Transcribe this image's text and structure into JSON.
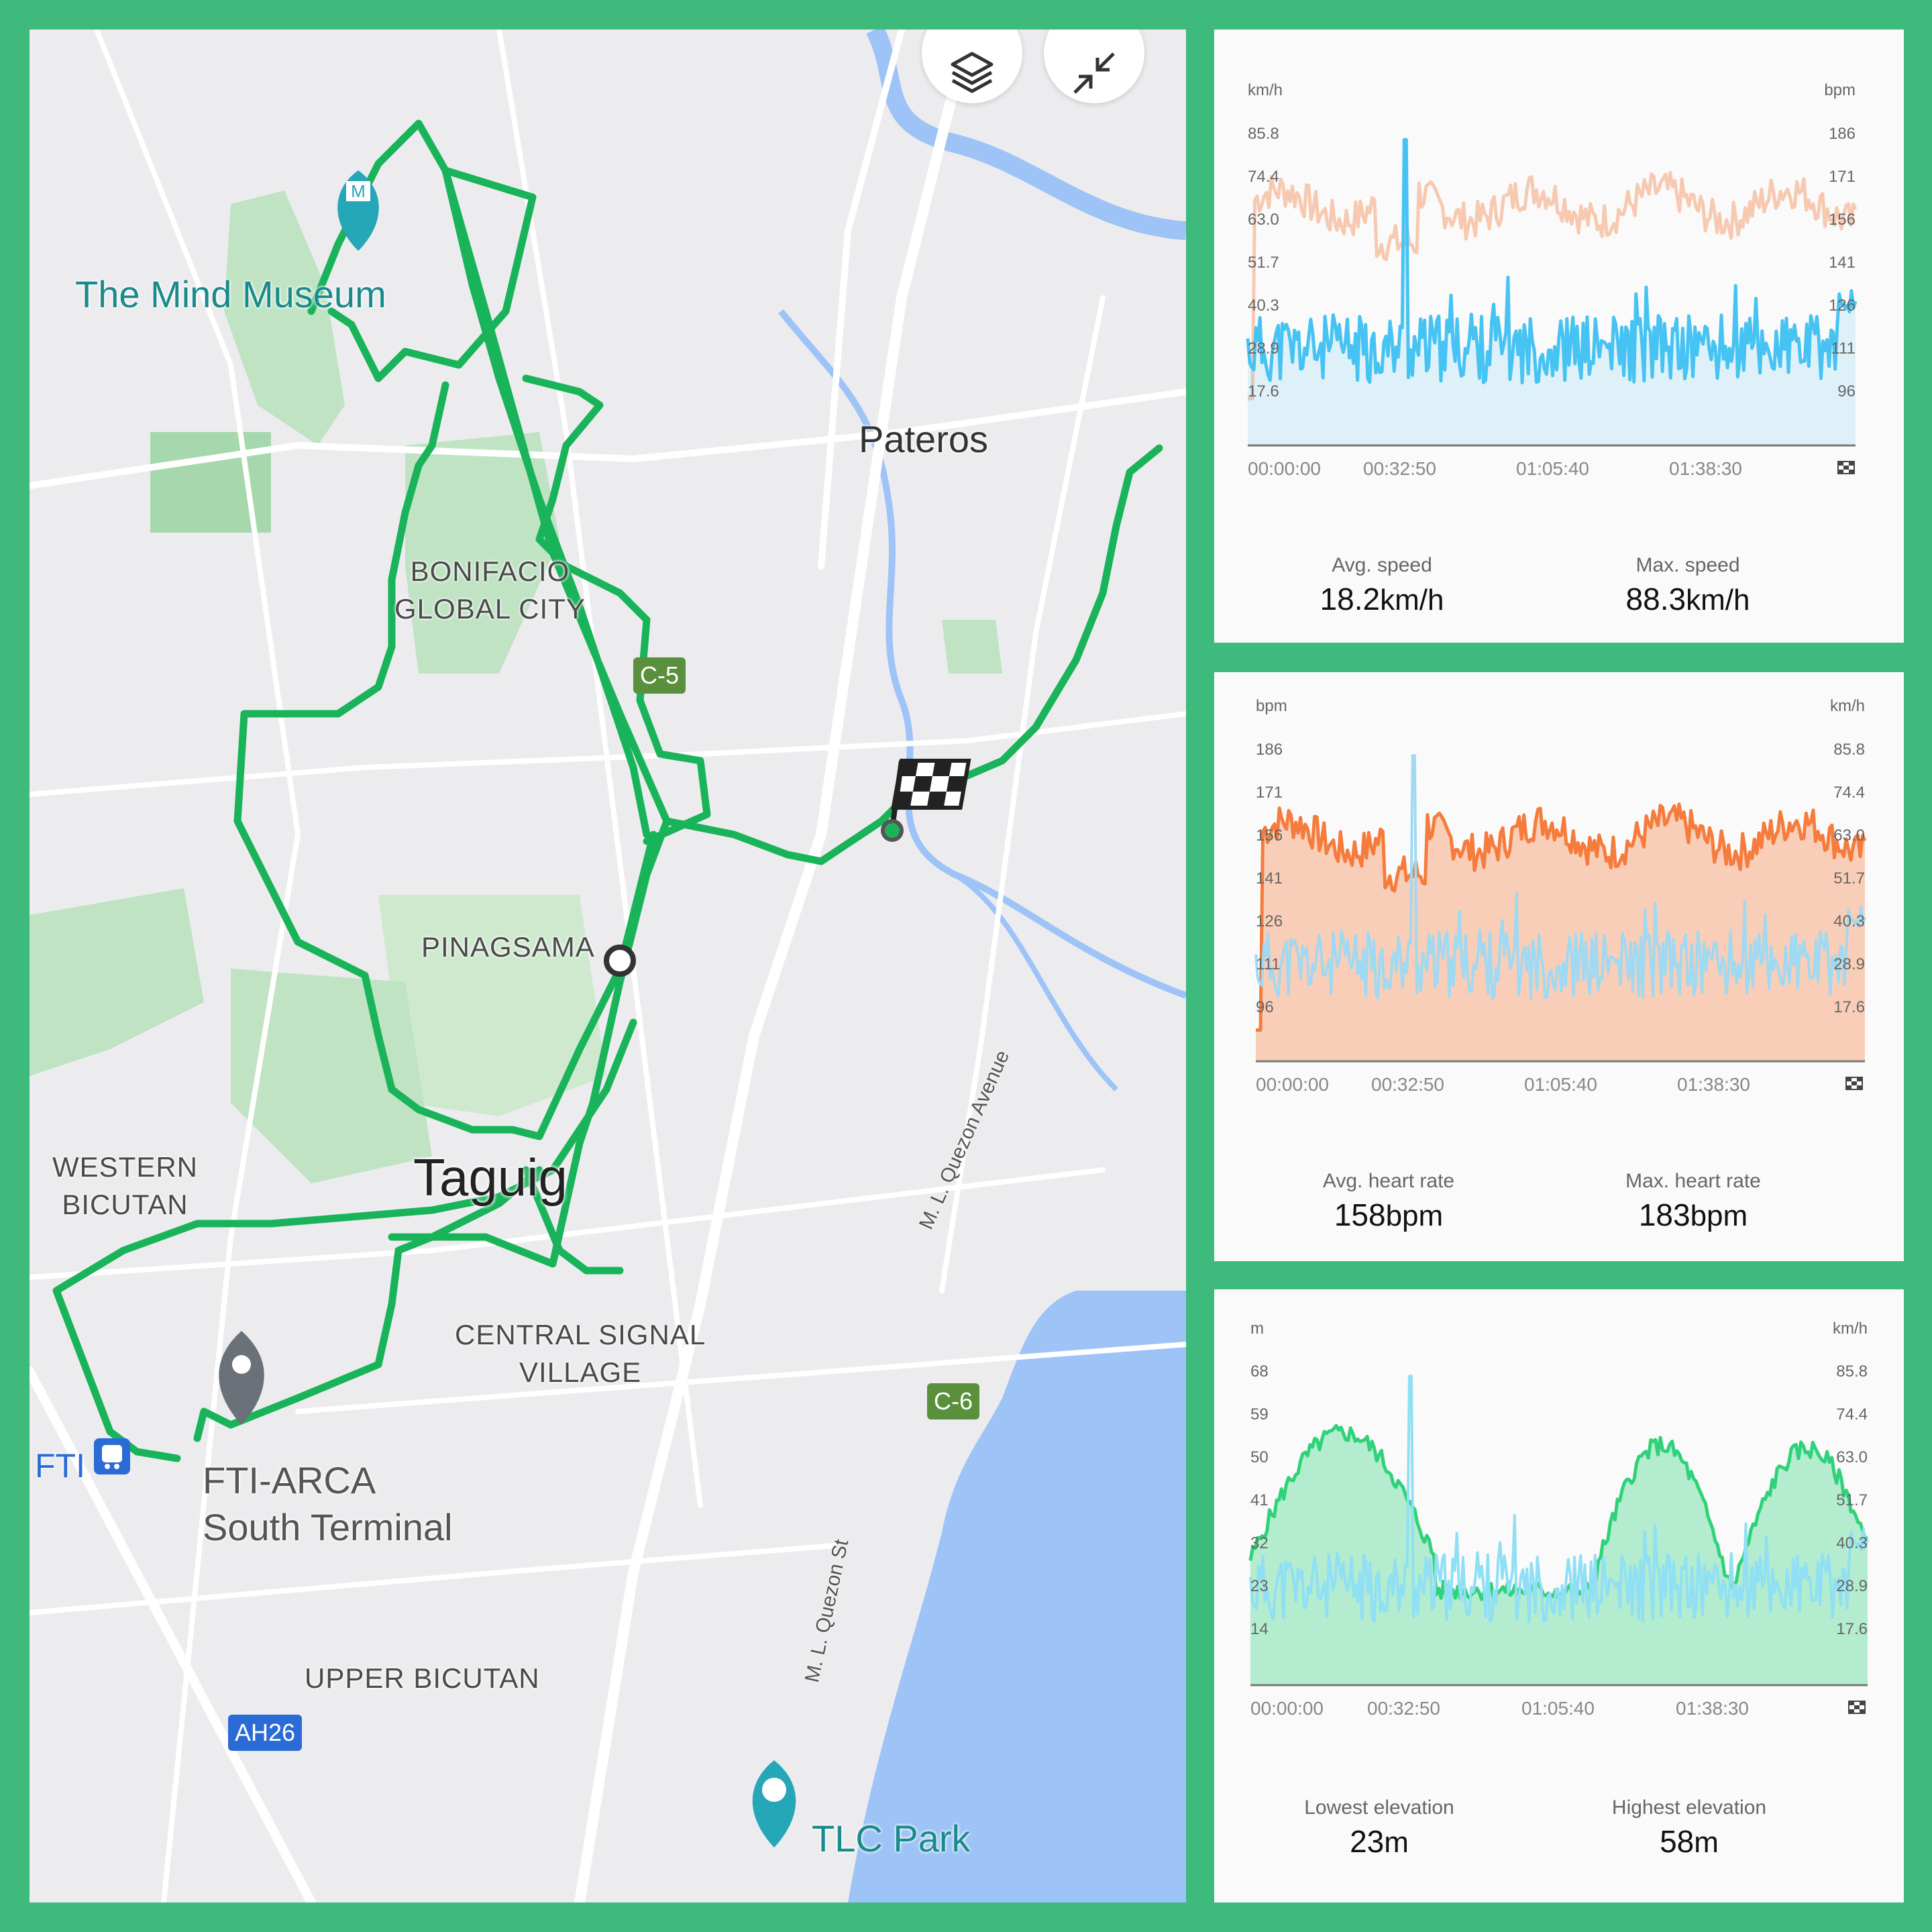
{
  "map": {
    "controls": {
      "layers_icon": "layers-icon",
      "collapse_icon": "collapse-icon"
    },
    "labels": {
      "mind_museum": "The Mind Museum",
      "pateros": "Pateros",
      "bgc_line1": "BONIFACIO",
      "bgc_line2": "GLOBAL CITY",
      "pinagsama": "PINAGSAMA",
      "taguig": "Taguig",
      "western_bicutan_line1": "WESTERN",
      "western_bicutan_line2": "BICUTAN",
      "central_signal_line1": "CENTRAL SIGNAL",
      "central_signal_line2": "VILLAGE",
      "fti": "FTI",
      "fti_arca_line1": "FTI-ARCA",
      "fti_arca_line2": "South Terminal",
      "upper_bicutan": "UPPER BICUTAN",
      "tlc_park": "TLC Park",
      "ml_quezon_avenue": "M. L. Quezon Avenue",
      "ml_quezon_st": "M. L. Quezon St"
    },
    "shields": {
      "c5": "C-5",
      "c6": "C-6",
      "ah26": "AH26"
    },
    "route_color": "#19b35a",
    "water_color": "#9ec3f7"
  },
  "panels": [
    {
      "left_unit": "km/h",
      "right_unit": "bpm",
      "left_ticks": [
        "85.8",
        "74.4",
        "63.0",
        "51.7",
        "40.3",
        "28.9",
        "17.6"
      ],
      "right_ticks": [
        "186",
        "171",
        "156",
        "141",
        "126",
        "111",
        "96"
      ],
      "x_ticks": [
        "00:00:00",
        "00:32:50",
        "01:05:40",
        "01:38:30"
      ],
      "end_icon": "finish-flag-icon",
      "stat1_label": "Avg. speed",
      "stat1_value": "18.2",
      "stat1_unit": "km/h",
      "stat2_label": "Max. speed",
      "stat2_value": "88.3",
      "stat2_unit": "km/h",
      "primary_color": "#47c3f3",
      "secondary_color": "#f7c9b0"
    },
    {
      "left_unit": "bpm",
      "right_unit": "km/h",
      "left_ticks": [
        "186",
        "171",
        "156",
        "141",
        "126",
        "111",
        "96"
      ],
      "right_ticks": [
        "85.8",
        "74.4",
        "63.0",
        "51.7",
        "40.3",
        "28.9",
        "17.6"
      ],
      "x_ticks": [
        "00:00:00",
        "00:32:50",
        "01:05:40",
        "01:38:30"
      ],
      "end_icon": "finish-flag-icon",
      "stat1_label": "Avg. heart rate",
      "stat1_value": "158",
      "stat1_unit": "bpm",
      "stat2_label": "Max. heart rate",
      "stat2_value": "183",
      "stat2_unit": "bpm",
      "primary_color": "#f57c3c",
      "secondary_color": "#9fd9f2"
    },
    {
      "left_unit": "m",
      "right_unit": "km/h",
      "left_ticks": [
        "68",
        "59",
        "50",
        "41",
        "32",
        "23",
        "14"
      ],
      "right_ticks": [
        "85.8",
        "74.4",
        "63.0",
        "51.7",
        "40.3",
        "28.9",
        "17.6"
      ],
      "x_ticks": [
        "00:00:00",
        "00:32:50",
        "01:05:40",
        "01:38:30"
      ],
      "end_icon": "finish-flag-icon",
      "stat1_label": "Lowest elevation",
      "stat1_value": "23",
      "stat1_unit": "m",
      "stat2_label": "Highest elevation",
      "stat2_value": "58",
      "stat2_unit": "m",
      "primary_color": "#2fd27a",
      "secondary_color": "#8fdff5"
    }
  ]
}
